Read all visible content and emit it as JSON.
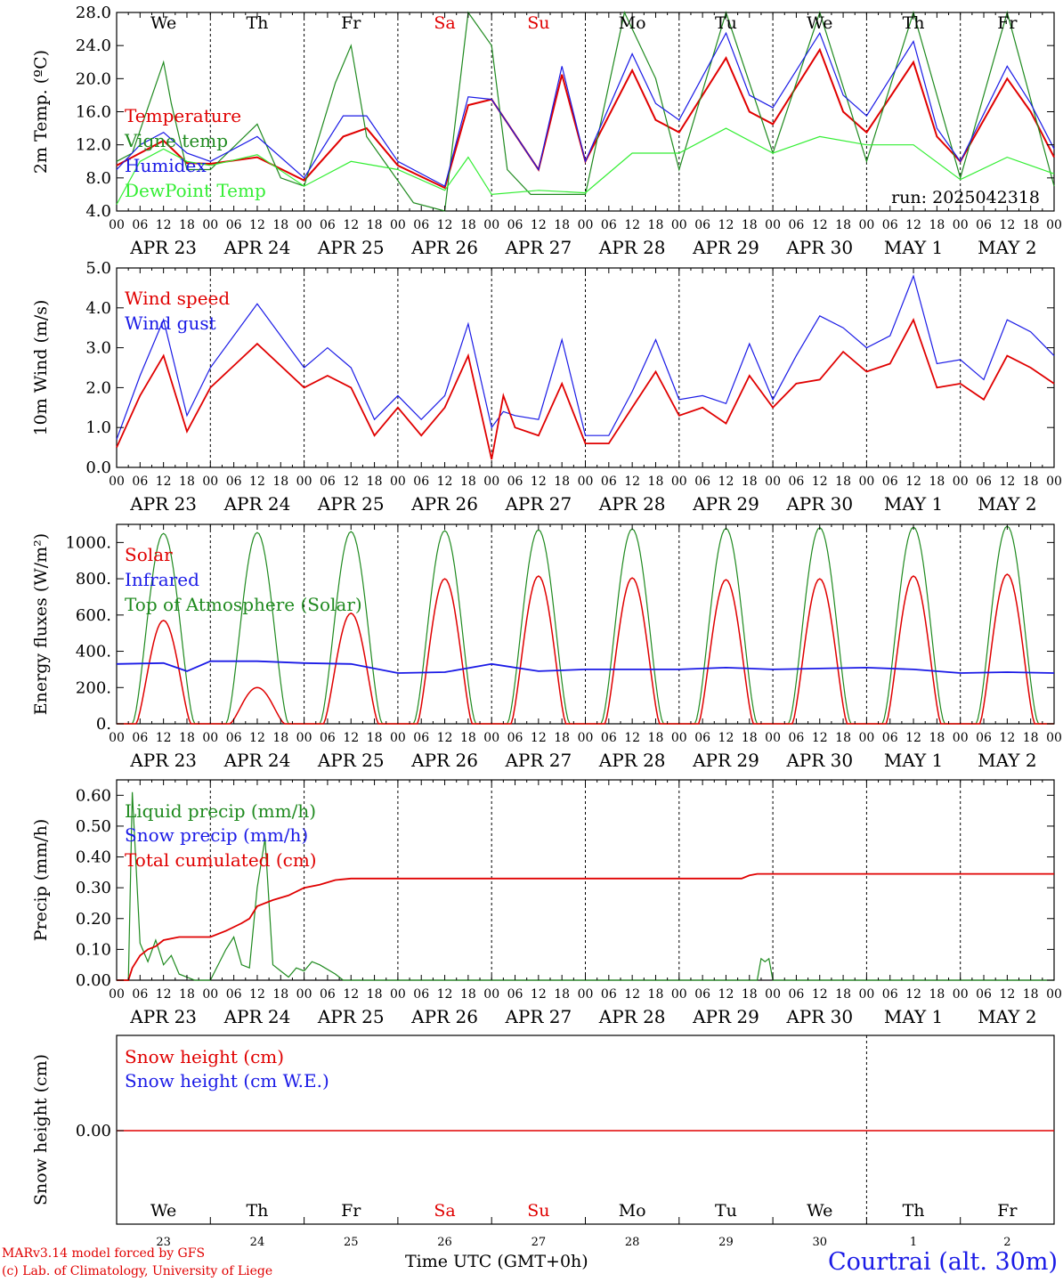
{
  "chart_data": [
    {
      "type": "line",
      "ylabel": "2m Temp. (ºC)",
      "ylim": [
        4,
        28
      ],
      "yticks": [
        "4.0",
        "8.0",
        "12.0",
        "16.0",
        "20.0",
        "24.0",
        "28.0"
      ],
      "annotation": "run: 2025042318",
      "legend": [
        "Temperature",
        "Vigne temp",
        "Humidex",
        "DewPoint Temp"
      ],
      "x_unit": "hours since APR 23 00 UTC",
      "series": [
        {
          "name": "Temperature",
          "color": "#e00000",
          "x": [
            0,
            6,
            12,
            18,
            24,
            36,
            48,
            58,
            64,
            72,
            84,
            90,
            96,
            108,
            114,
            120,
            132,
            138,
            144,
            156,
            162,
            168,
            180,
            186,
            192,
            204,
            210,
            216,
            228,
            234,
            240
          ],
          "values": [
            9.5,
            11,
            12.5,
            9.8,
            9.7,
            10.5,
            7.7,
            13,
            14,
            9.5,
            6.8,
            16.8,
            17.5,
            9,
            20.5,
            10,
            21,
            15,
            13.5,
            22.5,
            16,
            14.5,
            23.5,
            16,
            13.5,
            22,
            13,
            10,
            20,
            16,
            10.5
          ]
        },
        {
          "name": "Vigne temp",
          "color": "#1f8a1f",
          "x": [
            0,
            4,
            12,
            14,
            18,
            24,
            36,
            42,
            48,
            56,
            60,
            64,
            70,
            76,
            84,
            90,
            96,
            100,
            106,
            120,
            130,
            138,
            144,
            156,
            168,
            180,
            192,
            204,
            216,
            228,
            240
          ],
          "values": [
            10,
            11,
            22,
            17,
            9,
            9,
            14.5,
            8,
            7,
            19.5,
            24,
            13,
            9,
            5,
            3.5,
            30,
            24,
            9,
            6,
            6,
            30,
            20,
            9,
            31,
            11,
            31,
            10,
            31,
            8,
            31,
            7
          ]
        },
        {
          "name": "Humidex",
          "color": "#1a1ae6",
          "x": [
            0,
            6,
            12,
            18,
            24,
            36,
            48,
            58,
            64,
            72,
            84,
            90,
            96,
            108,
            114,
            120,
            132,
            138,
            144,
            156,
            162,
            168,
            180,
            186,
            192,
            204,
            210,
            216,
            228,
            234,
            240
          ],
          "values": [
            9,
            12,
            13.5,
            11,
            10,
            13,
            8,
            15.5,
            15.5,
            10,
            7,
            17.8,
            17.5,
            9,
            21.5,
            10,
            23,
            17,
            15,
            25.5,
            18,
            16.5,
            25.5,
            18,
            15.5,
            24.5,
            14,
            10,
            21.5,
            17,
            11.5
          ]
        },
        {
          "name": "DewPoint Temp",
          "color": "#33ee33",
          "x": [
            0,
            6,
            12,
            18,
            24,
            36,
            48,
            60,
            66,
            72,
            84,
            90,
            96,
            108,
            120,
            132,
            144,
            156,
            168,
            180,
            192,
            204,
            216,
            228,
            240
          ],
          "values": [
            4.8,
            10,
            11.5,
            10,
            9.5,
            10.8,
            7,
            10,
            9.5,
            9,
            6.5,
            10.5,
            6,
            6.5,
            6.2,
            11,
            11,
            14,
            11,
            13,
            12,
            12,
            7.8,
            10.5,
            8.5
          ]
        }
      ]
    },
    {
      "type": "line",
      "ylabel": "10m Wind (m/s)",
      "ylim": [
        0,
        5
      ],
      "yticks": [
        "0.0",
        "1.0",
        "2.0",
        "3.0",
        "4.0",
        "5.0"
      ],
      "legend": [
        "Wind speed",
        "Wind gust"
      ],
      "series": [
        {
          "name": "Wind speed",
          "color": "#e00000",
          "x": [
            0,
            6,
            12,
            18,
            24,
            36,
            48,
            54,
            60,
            66,
            72,
            78,
            84,
            90,
            96,
            99,
            102,
            108,
            114,
            120,
            126,
            132,
            138,
            144,
            150,
            156,
            162,
            168,
            174,
            180,
            186,
            192,
            198,
            204,
            210,
            216,
            222,
            228,
            234,
            240
          ],
          "values": [
            0.5,
            1.8,
            2.8,
            0.9,
            2.0,
            3.1,
            2.0,
            2.3,
            2.0,
            0.8,
            1.5,
            0.8,
            1.5,
            2.8,
            0.2,
            1.8,
            1.0,
            0.8,
            2.1,
            0.6,
            0.6,
            1.5,
            2.4,
            1.3,
            1.5,
            1.1,
            2.3,
            1.5,
            2.1,
            2.2,
            2.9,
            2.4,
            2.6,
            3.7,
            2.0,
            2.1,
            1.7,
            2.8,
            2.5,
            2.1
          ]
        },
        {
          "name": "Wind gust",
          "color": "#1a1ae6",
          "x": [
            0,
            6,
            12,
            18,
            24,
            36,
            48,
            54,
            60,
            66,
            72,
            78,
            84,
            90,
            96,
            99,
            102,
            108,
            114,
            120,
            126,
            132,
            138,
            144,
            150,
            156,
            162,
            168,
            174,
            180,
            186,
            192,
            198,
            204,
            210,
            216,
            222,
            228,
            234,
            240
          ],
          "values": [
            0.7,
            2.3,
            3.7,
            1.3,
            2.5,
            4.1,
            2.5,
            3.0,
            2.5,
            1.2,
            1.8,
            1.2,
            1.8,
            3.6,
            1.0,
            1.4,
            1.3,
            1.2,
            3.2,
            0.8,
            0.8,
            1.9,
            3.2,
            1.7,
            1.8,
            1.6,
            3.1,
            1.7,
            2.8,
            3.8,
            3.5,
            3.0,
            3.3,
            4.8,
            2.6,
            2.7,
            2.2,
            3.7,
            3.4,
            2.8
          ]
        }
      ]
    },
    {
      "type": "line",
      "ylabel": "Energy fluxes (W/m²)",
      "ylim": [
        0,
        1100
      ],
      "yticks": [
        "0.",
        "200.",
        "400.",
        "600.",
        "800.",
        "1000."
      ],
      "legend": [
        "Solar",
        "Infrared",
        "Top of Atmosphere (Solar)"
      ],
      "daily_peaks": {
        "toa": [
          1050,
          1055,
          1060,
          1065,
          1070,
          1075,
          1078,
          1082,
          1085,
          1090
        ],
        "solar": [
          570,
          200,
          610,
          800,
          815,
          805,
          795,
          800,
          815,
          825
        ]
      },
      "series": [
        {
          "name": "Infrared",
          "color": "#1a1ae6",
          "x": [
            0,
            12,
            18,
            24,
            36,
            48,
            60,
            72,
            84,
            96,
            108,
            120,
            132,
            144,
            156,
            168,
            180,
            192,
            204,
            216,
            228,
            240
          ],
          "values": [
            330,
            335,
            290,
            345,
            345,
            335,
            330,
            280,
            285,
            330,
            290,
            300,
            300,
            300,
            310,
            300,
            305,
            310,
            300,
            280,
            285,
            280
          ]
        }
      ]
    },
    {
      "type": "line",
      "ylabel": "Precip (mm/h)",
      "ylim": [
        0,
        0.65
      ],
      "yticks": [
        "0.00",
        "0.10",
        "0.20",
        "0.30",
        "0.40",
        "0.50",
        "0.60"
      ],
      "legend": [
        "Liquid precip (mm/h)",
        "Snow precip (mm/h)",
        "Total cumulated (cm)"
      ],
      "series": [
        {
          "name": "Liquid precip (mm/h)",
          "color": "#1f8a1f",
          "x": [
            0,
            3,
            4,
            6,
            8,
            10,
            12,
            14,
            16,
            20,
            24,
            28,
            30,
            32,
            34,
            36,
            38,
            40,
            42,
            44,
            46,
            48,
            50,
            52,
            56,
            58,
            60,
            164,
            165,
            166,
            167,
            168,
            240
          ],
          "values": [
            0,
            0,
            0.61,
            0.12,
            0.06,
            0.13,
            0.05,
            0.08,
            0.02,
            0,
            0,
            0.1,
            0.14,
            0.05,
            0.04,
            0.3,
            0.46,
            0.05,
            0.03,
            0.01,
            0.04,
            0.03,
            0.06,
            0.05,
            0.02,
            0,
            0,
            0,
            0.07,
            0.06,
            0.07,
            0,
            0
          ]
        },
        {
          "name": "Total cumulated (cm)",
          "color": "#e00000",
          "x": [
            0,
            3,
            4,
            6,
            8,
            10,
            12,
            16,
            20,
            24,
            28,
            32,
            34,
            36,
            40,
            44,
            48,
            52,
            56,
            60,
            120,
            160,
            162,
            164,
            240
          ],
          "values": [
            0,
            0,
            0.04,
            0.08,
            0.1,
            0.11,
            0.13,
            0.14,
            0.14,
            0.14,
            0.16,
            0.185,
            0.2,
            0.24,
            0.26,
            0.275,
            0.3,
            0.31,
            0.325,
            0.33,
            0.33,
            0.33,
            0.34,
            0.345,
            0.345
          ]
        }
      ]
    },
    {
      "type": "line",
      "ylabel": "Snow height (cm)",
      "ytick": "0.00",
      "legend": [
        "Snow height (cm)",
        "Snow height (cm W.E.)"
      ],
      "series": [
        {
          "name": "Snow height (cm)",
          "color": "#e00000",
          "x": [
            0,
            240
          ],
          "values": [
            0,
            0
          ]
        }
      ]
    }
  ],
  "x_axis": {
    "hour_ticks": [
      "00",
      "06",
      "12",
      "18"
    ],
    "last_tick": "00",
    "date_labels": [
      "APR 23",
      "APR 24",
      "APR 25",
      "APR 26",
      "APR 27",
      "APR 28",
      "APR 29",
      "APR 30",
      "MAY  1",
      "MAY  2"
    ],
    "weekdays": [
      "We",
      "Th",
      "Fr",
      "Sa",
      "Su",
      "Mo",
      "Tu",
      "We",
      "Th",
      "Fr"
    ],
    "weekday_colors": [
      "#000000",
      "#000000",
      "#000000",
      "#e00000",
      "#e00000",
      "#000000",
      "#000000",
      "#000000",
      "#000000",
      "#000000"
    ],
    "day_numbers": [
      "23",
      "24",
      "25",
      "26",
      "27",
      "28",
      "29",
      "30",
      "1",
      "2"
    ]
  },
  "footer": {
    "credit_line1": "MARv3.14 model forced by GFS",
    "credit_line2": "(c) Lab. of Climatology, University of Liege",
    "xaxis_title": "Time UTC (GMT+0h)",
    "station": "Courtrai (alt. 30m)"
  }
}
